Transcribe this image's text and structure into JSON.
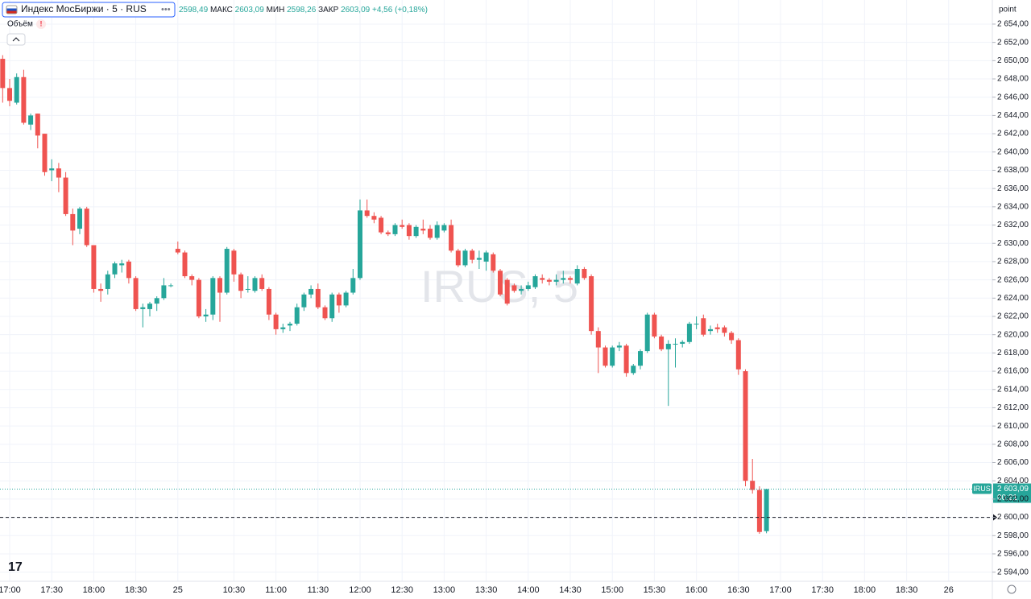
{
  "chart_data": {
    "type": "candlestick",
    "title": "Индекс МосБиржи · 5 · RUS",
    "legend": {
      "open": "2598,49",
      "high_label": "МАКС",
      "high": "2603,09",
      "low_label": "МИН",
      "low": "2598,26",
      "close_label": "ЗАКР",
      "close": "2603,09",
      "change": "+4,56 (+0,18%)"
    },
    "volume_label": "Объём",
    "watermark": "IRUS, 5",
    "axis_unit": "point",
    "symbol": "IRUS",
    "last_price": {
      "value": 2603.09,
      "label": "2 603,09"
    },
    "countdown": "00:21",
    "hline": 2600,
    "up_color": "#26a69a",
    "down_color": "#ef5350",
    "grid": true,
    "ylim": [
      2593,
      2656.64
    ],
    "yticks": [
      {
        "value": 2594,
        "label": "2 594,00"
      },
      {
        "value": 2596,
        "label": "2 596,00"
      },
      {
        "value": 2598,
        "label": "2 598,00"
      },
      {
        "value": 2600,
        "label": "2 600,00"
      },
      {
        "value": 2602,
        "label": "2 602,00"
      },
      {
        "value": 2604,
        "label": "2 604,00"
      },
      {
        "value": 2606,
        "label": "2 606,00"
      },
      {
        "value": 2608,
        "label": "2 608,00"
      },
      {
        "value": 2610,
        "label": "2 610,00"
      },
      {
        "value": 2612,
        "label": "2 612,00"
      },
      {
        "value": 2614,
        "label": "2 614,00"
      },
      {
        "value": 2616,
        "label": "2 616,00"
      },
      {
        "value": 2618,
        "label": "2 618,00"
      },
      {
        "value": 2620,
        "label": "2 620,00"
      },
      {
        "value": 2622,
        "label": "2 622,00"
      },
      {
        "value": 2624,
        "label": "2 624,00"
      },
      {
        "value": 2626,
        "label": "2 626,00"
      },
      {
        "value": 2628,
        "label": "2 628,00"
      },
      {
        "value": 2630,
        "label": "2 630,00"
      },
      {
        "value": 2632,
        "label": "2 632,00"
      },
      {
        "value": 2634,
        "label": "2 634,00"
      },
      {
        "value": 2636,
        "label": "2 636,00"
      },
      {
        "value": 2638,
        "label": "2 638,00"
      },
      {
        "value": 2640,
        "label": "2 640,00"
      },
      {
        "value": 2642,
        "label": "2 642,00"
      },
      {
        "value": 2644,
        "label": "2 644,00"
      },
      {
        "value": 2646,
        "label": "2 646,00"
      },
      {
        "value": 2648,
        "label": "2 648,00"
      },
      {
        "value": 2650,
        "label": "2 650,00"
      },
      {
        "value": 2652,
        "label": "2 652,00"
      },
      {
        "value": 2654,
        "label": "2 654,00"
      }
    ],
    "categories": [
      null,
      "17:00",
      null,
      null,
      null,
      null,
      null,
      "17:30",
      null,
      null,
      null,
      null,
      null,
      "18:00",
      null,
      null,
      null,
      null,
      null,
      "18:30",
      null,
      null,
      null,
      null,
      null,
      "25",
      null,
      null,
      null,
      null,
      null,
      null,
      null,
      "10:30",
      null,
      null,
      null,
      null,
      null,
      "11:00",
      null,
      null,
      null,
      null,
      null,
      "11:30",
      null,
      null,
      null,
      null,
      null,
      "12:00",
      null,
      null,
      null,
      null,
      null,
      "12:30",
      null,
      null,
      null,
      null,
      null,
      "13:00",
      null,
      null,
      null,
      null,
      null,
      "13:30",
      null,
      null,
      null,
      null,
      null,
      "14:00",
      null,
      null,
      null,
      null,
      null,
      "14:30",
      null,
      null,
      null,
      null,
      null,
      "15:00",
      null,
      null,
      null,
      null,
      null,
      "15:30",
      null,
      null,
      null,
      null,
      null,
      "16:00",
      null,
      null,
      null,
      null,
      null,
      "16:30",
      null,
      null,
      null,
      null,
      null,
      "17:00",
      null,
      null,
      null,
      null,
      null,
      "17:30",
      null,
      null,
      null,
      null,
      null,
      "18:00",
      null,
      null,
      null,
      null,
      null,
      "18:30",
      null,
      null,
      null,
      null,
      null,
      "26"
    ],
    "open": [
      2650.2,
      2647.0,
      2645.4,
      2648.2,
      2643.0,
      2644.2,
      2642.0,
      2638.0,
      2638.2,
      2637.2,
      2633.2,
      2631.6,
      2633.8,
      2629.8,
      2625.0,
      2625.0,
      2626.6,
      2627.6,
      2628.0,
      2626.2,
      2622.8,
      2622.8,
      2623.4,
      2624.0,
      2625.4,
      2629.4,
      2629.0,
      2626.4,
      2626.0,
      2622.0,
      2622.2,
      2626.2,
      2624.6,
      2629.2,
      2626.6,
      2625.0,
      2624.8,
      2626.2,
      2625.0,
      2622.2,
      2620.6,
      2621.0,
      2621.2,
      2623.0,
      2624.4,
      2625.0,
      2623.0,
      2621.8,
      2624.4,
      2623.2,
      2624.6,
      2626.2,
      2633.6,
      2633.0,
      2632.8,
      2631.2,
      2631.0,
      2632.0,
      2632.0,
      2630.8,
      2631.6,
      2631.6,
      2630.6,
      2631.4,
      2632.0,
      2629.2,
      2627.6,
      2629.2,
      2628.2,
      2628.0,
      2628.8,
      2627.0,
      2626.0,
      2625.4,
      2624.8,
      2625.0,
      2625.2,
      2626.2,
      2626.0,
      2625.8,
      2626.0,
      2626.2,
      2625.6,
      2627.2,
      2626.4,
      2620.4,
      2618.6,
      2616.6,
      2618.6,
      2618.8,
      2615.8,
      2616.6,
      2618.2,
      2622.2,
      2619.8,
      2618.4,
      2619.0,
      2619.0,
      2619.2,
      2621.2,
      2621.8,
      2620.4,
      2620.8,
      2620.8,
      2620.2,
      2619.4,
      2616.0,
      2604.0,
      2603.0,
      2598.49,
      null,
      null,
      null,
      null,
      null,
      null,
      null,
      null,
      null,
      null,
      null,
      null,
      null,
      null,
      null,
      null,
      null,
      null,
      null,
      null,
      null,
      null,
      null,
      null,
      null,
      null
    ],
    "high": [
      2650.6,
      2648.0,
      2648.6,
      2649.0,
      2644.2,
      2644.2,
      2642.0,
      2639.2,
      2638.8,
      2637.8,
      2633.8,
      2634.0,
      2634.0,
      2629.8,
      2625.6,
      2627.0,
      2628.0,
      2628.2,
      2628.2,
      2626.4,
      2623.4,
      2623.6,
      2624.2,
      2626.2,
      2625.6,
      2630.2,
      2629.2,
      2626.6,
      2626.2,
      2622.8,
      2626.4,
      2626.4,
      2629.6,
      2629.4,
      2626.8,
      2626.4,
      2626.4,
      2626.6,
      2625.2,
      2622.4,
      2621.2,
      2621.4,
      2623.4,
      2624.6,
      2625.4,
      2625.6,
      2623.2,
      2624.6,
      2624.6,
      2624.8,
      2627.2,
      2634.8,
      2634.8,
      2633.4,
      2633.0,
      2631.4,
      2632.2,
      2632.6,
      2632.2,
      2632.0,
      2632.6,
      2632.0,
      2632.4,
      2632.2,
      2632.6,
      2629.4,
      2629.4,
      2629.4,
      2629.2,
      2629.2,
      2629.0,
      2627.2,
      2626.2,
      2625.6,
      2625.4,
      2625.8,
      2626.6,
      2626.6,
      2626.2,
      2626.6,
      2627.0,
      2626.4,
      2627.6,
      2627.4,
      2626.6,
      2620.8,
      2618.8,
      2618.8,
      2619.2,
      2619.0,
      2616.8,
      2618.4,
      2622.4,
      2622.4,
      2620.0,
      2619.4,
      2619.6,
      2619.4,
      2621.4,
      2622.0,
      2622.2,
      2621.0,
      2621.2,
      2621.0,
      2620.4,
      2619.6,
      2616.2,
      2606.4,
      2603.4,
      2603.09,
      null,
      null,
      null,
      null,
      null,
      null,
      null,
      null,
      null,
      null,
      null,
      null,
      null,
      null,
      null,
      null,
      null,
      null,
      null,
      null,
      null,
      null,
      null,
      null,
      null,
      null
    ],
    "low": [
      2645.4,
      2645.0,
      2645.2,
      2643.0,
      2642.4,
      2640.4,
      2637.4,
      2636.8,
      2635.6,
      2633.0,
      2629.8,
      2631.0,
      2629.6,
      2624.6,
      2623.6,
      2624.4,
      2626.2,
      2626.8,
      2625.6,
      2622.6,
      2620.8,
      2622.0,
      2622.6,
      2623.8,
      2625.2,
      2628.8,
      2626.2,
      2625.4,
      2621.8,
      2621.4,
      2621.6,
      2621.4,
      2624.4,
      2625.8,
      2624.0,
      2624.6,
      2624.6,
      2624.8,
      2621.6,
      2620.0,
      2620.2,
      2620.4,
      2621.0,
      2622.6,
      2624.0,
      2622.8,
      2621.6,
      2621.4,
      2622.4,
      2623.0,
      2624.4,
      2626.0,
      2632.8,
      2632.2,
      2631.0,
      2630.8,
      2630.8,
      2631.6,
      2630.4,
      2630.6,
      2631.0,
      2630.4,
      2630.4,
      2631.2,
      2629.0,
      2627.4,
      2627.4,
      2627.8,
      2627.2,
      2627.0,
      2626.8,
      2624.2,
      2623.2,
      2624.6,
      2624.4,
      2624.8,
      2625.0,
      2625.6,
      2625.4,
      2625.4,
      2625.6,
      2625.6,
      2625.4,
      2626.0,
      2620.0,
      2615.8,
      2616.4,
      2616.4,
      2618.2,
      2615.4,
      2615.6,
      2616.2,
      2618.0,
      2619.6,
      2618.2,
      2612.2,
      2616.4,
      2618.6,
      2619.0,
      2620.6,
      2619.8,
      2620.0,
      2620.2,
      2619.8,
      2619.0,
      2615.6,
      2603.4,
      2602.6,
      2598.2,
      2598.26,
      null,
      null,
      null,
      null,
      null,
      null,
      null,
      null,
      null,
      null,
      null,
      null,
      null,
      null,
      null,
      null,
      null,
      null,
      null,
      null,
      null,
      null,
      null,
      null,
      null,
      null
    ],
    "close": [
      2647.0,
      2645.6,
      2648.2,
      2643.2,
      2644.0,
      2641.8,
      2637.8,
      2638.2,
      2637.2,
      2633.2,
      2631.4,
      2633.8,
      2629.8,
      2625.0,
      2624.8,
      2626.6,
      2627.8,
      2627.8,
      2626.2,
      2622.8,
      2623.0,
      2623.4,
      2624.0,
      2625.4,
      2625.4,
      2629.0,
      2626.4,
      2626.0,
      2622.0,
      2622.2,
      2626.2,
      2624.6,
      2629.4,
      2626.6,
      2624.8,
      2625.0,
      2626.2,
      2625.0,
      2622.2,
      2620.6,
      2620.8,
      2621.2,
      2623.0,
      2624.4,
      2625.0,
      2623.0,
      2621.8,
      2624.4,
      2623.2,
      2624.6,
      2626.2,
      2633.6,
      2633.0,
      2632.6,
      2631.2,
      2631.0,
      2632.0,
      2631.8,
      2630.8,
      2631.8,
      2631.4,
      2630.6,
      2632.0,
      2632.0,
      2629.2,
      2627.6,
      2629.2,
      2628.2,
      2628.4,
      2629.0,
      2627.0,
      2624.4,
      2623.4,
      2624.8,
      2625.0,
      2625.4,
      2626.4,
      2626.0,
      2625.8,
      2626.0,
      2626.2,
      2626.0,
      2627.2,
      2626.2,
      2620.4,
      2618.6,
      2616.6,
      2618.6,
      2618.8,
      2615.8,
      2616.6,
      2618.2,
      2622.2,
      2619.8,
      2618.4,
      2619.0,
      2619.0,
      2619.2,
      2621.2,
      2621.2,
      2620.0,
      2620.6,
      2620.6,
      2620.2,
      2619.4,
      2616.2,
      2604.0,
      2603.0,
      2598.4,
      2603.09,
      null,
      null,
      null,
      null,
      null,
      null,
      null,
      null,
      null,
      null,
      null,
      null,
      null,
      null,
      null,
      null,
      null,
      null,
      null,
      null,
      null,
      null,
      null,
      null,
      null,
      null
    ]
  }
}
